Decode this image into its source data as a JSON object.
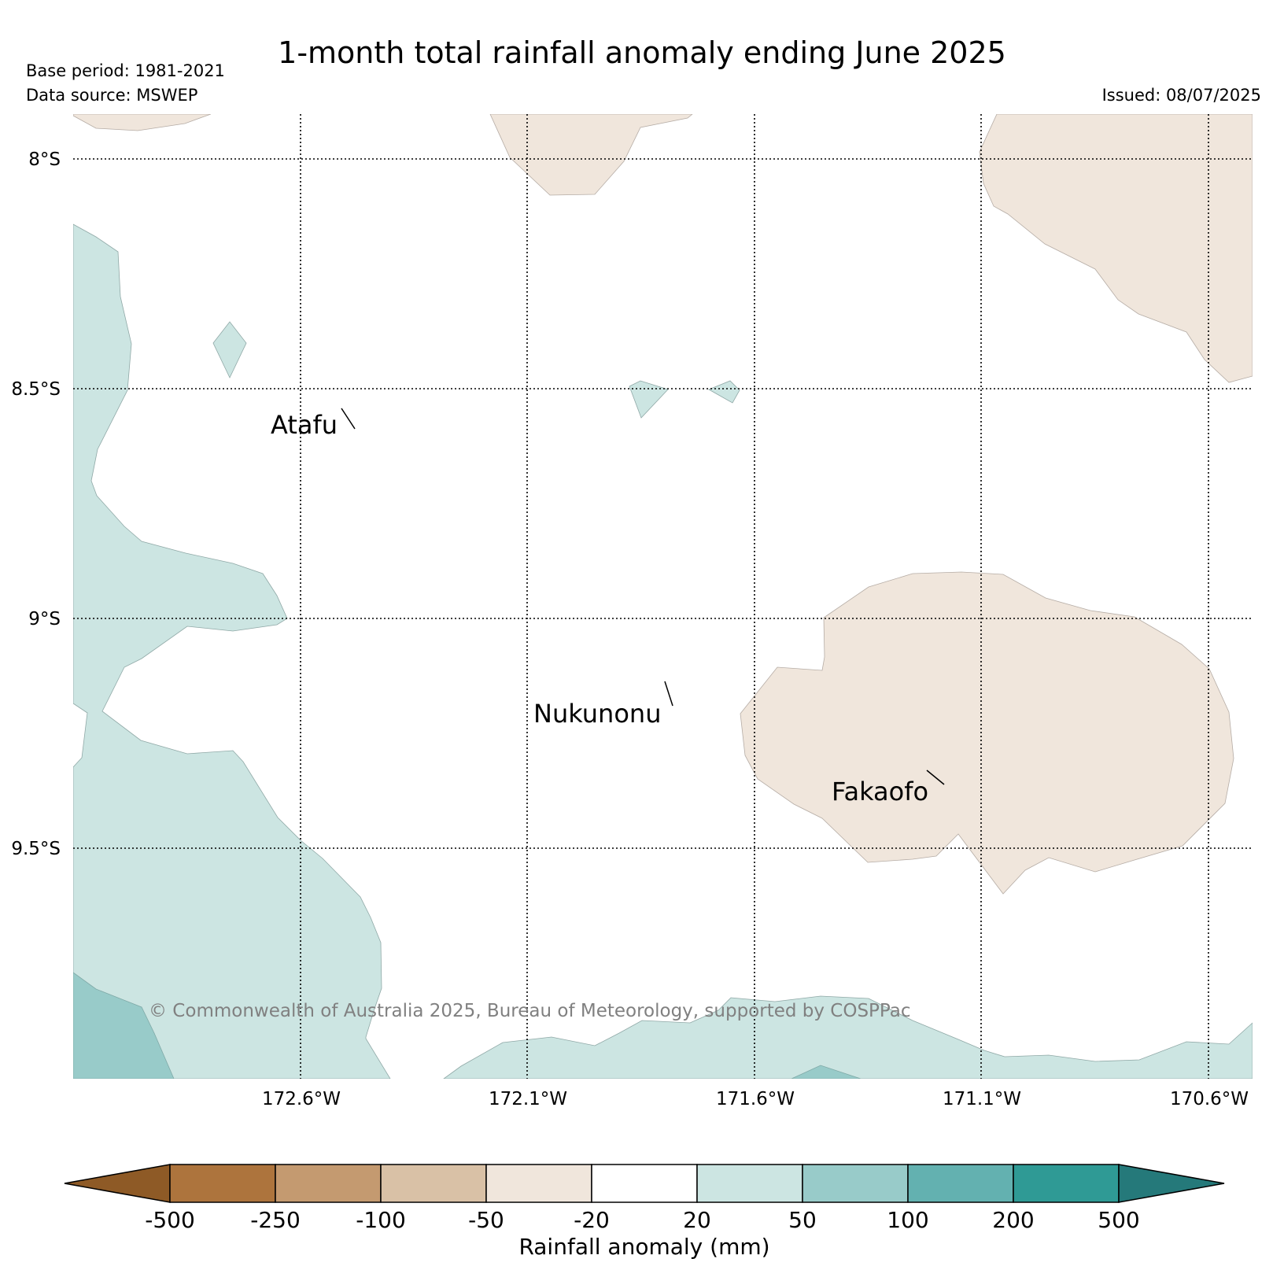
{
  "header": {
    "title": "1-month total rainfall anomaly ending June 2025",
    "base_period": "Base period: 1981-2021",
    "data_source": "Data source: MSWEP",
    "issued": "Issued: 08/07/2025"
  },
  "map": {
    "lat_labels": [
      "8°S",
      "8.5°S",
      "9°S",
      "9.5°S"
    ],
    "lon_labels": [
      "172.6°W",
      "172.1°W",
      "171.6°W",
      "171.1°W",
      "170.6°W"
    ],
    "places": [
      {
        "name": "Atafu",
        "lat": -8.58,
        "lon": -172.48
      },
      {
        "name": "Nukunonu",
        "lat": -9.17,
        "lon": -171.82
      },
      {
        "name": "Fakaofo",
        "lat": -9.37,
        "lon": -171.22
      }
    ],
    "copyright": "© Commonwealth of Australia 2025, Bureau of Meteorology, supported by COSPPac",
    "colors": {
      "-50_-20": "#f0e6dc",
      "-20_20": "#ffffff",
      "20_50": "#cce5e2",
      "50_100": "#98cbc9"
    }
  },
  "legend": {
    "title": "Rainfall anomaly (mm)",
    "ticks": [
      "-500",
      "-250",
      "-100",
      "-50",
      "-20",
      "20",
      "50",
      "100",
      "200",
      "500"
    ],
    "colors": [
      "#8e5a26",
      "#ad743d",
      "#c49a70",
      "#d9c1a6",
      "#f0e6dc",
      "#ffffff",
      "#cce5e2",
      "#98cbc9",
      "#63b1b0",
      "#2f9a95",
      "#25797a"
    ]
  }
}
